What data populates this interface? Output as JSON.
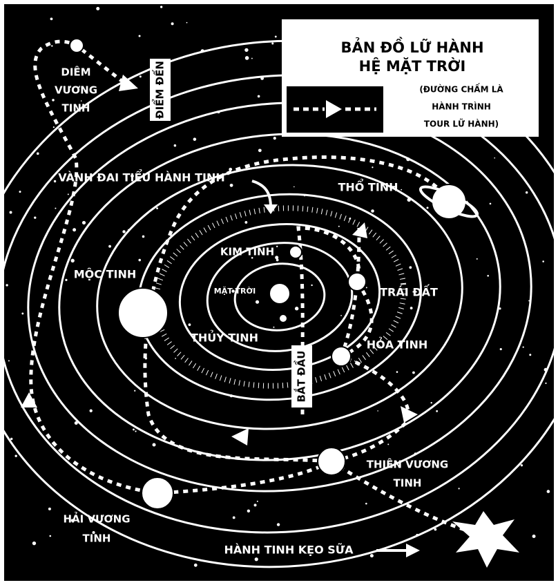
{
  "title": {
    "lines": [
      "BẢN ĐỒ LỮ HÀNH",
      "HỆ MẶT TRỜI"
    ]
  },
  "legend": {
    "note": [
      "(ĐƯỜNG CHẤM LÀ",
      "HÀNH TRÌNH",
      "TOUR LỮ HÀNH)"
    ]
  },
  "labels": [
    {
      "lines": [
        "DIÊM",
        "VƯƠNG",
        "TINH"
      ]
    },
    {
      "lines": [
        "ĐIỂM ĐẾN"
      ]
    },
    {
      "lines": [
        "VÀNH ĐAI TIỂU HÀNH TINH"
      ]
    },
    {
      "lines": [
        "THỔ TINH"
      ]
    },
    {
      "lines": [
        "KIM TINH"
      ]
    },
    {
      "lines": [
        "MỘC TINH"
      ]
    },
    {
      "lines": [
        "MẶT TRỜI"
      ]
    },
    {
      "lines": [
        "TRÁI ĐẤT"
      ]
    },
    {
      "lines": [
        "THỦY TINH"
      ]
    },
    {
      "lines": [
        "HỎA TINH"
      ]
    },
    {
      "lines": [
        "BẮT ĐẦU"
      ]
    },
    {
      "lines": [
        "THIÊN VƯƠNG",
        "TINH"
      ]
    },
    {
      "lines": [
        "HẢI VƯƠNG",
        "TINH"
      ]
    },
    {
      "lines": [
        "HÀNH TINH KẸO SỮA"
      ]
    }
  ]
}
